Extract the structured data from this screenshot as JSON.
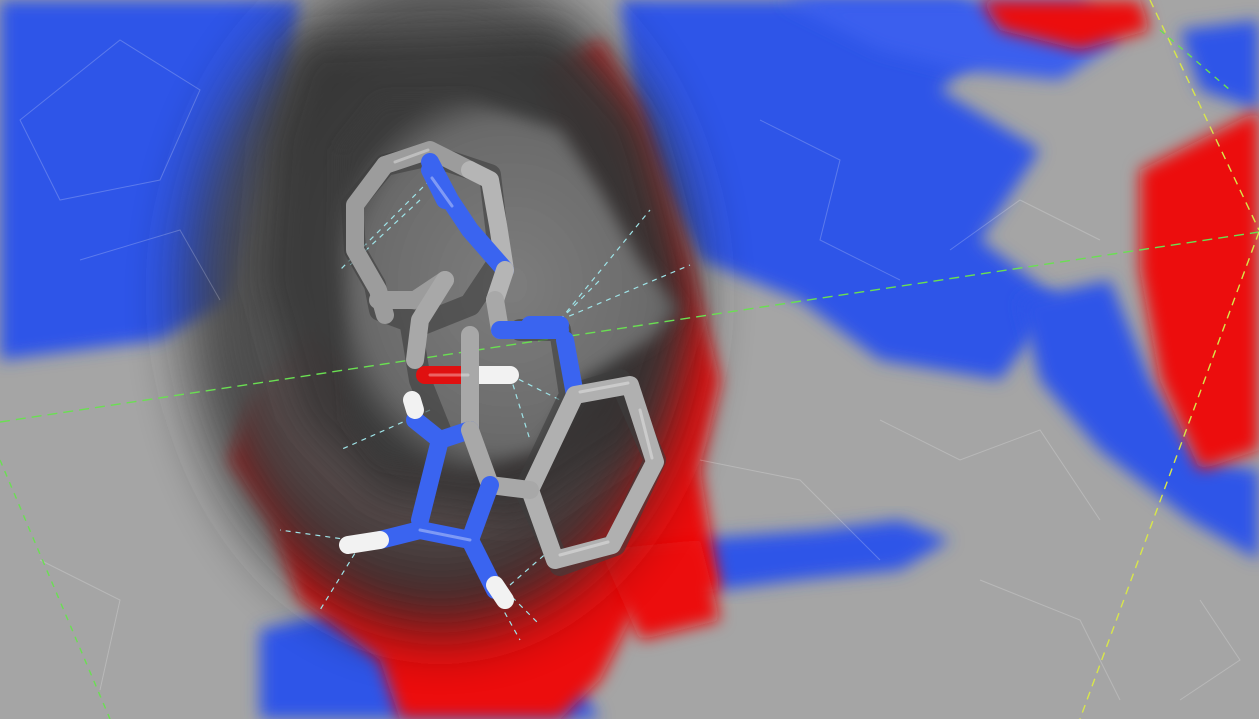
{
  "scene": {
    "type": "molecular-docking-render",
    "surface_colors": {
      "neutral": "#a9a9a9",
      "negative": "#ec0f0f",
      "positive": "#2f55e8",
      "pocket": "#7a7a7a"
    },
    "ligand_colors": {
      "carbon": "#a8a8a8",
      "nitrogen": "#3a64f0",
      "oxygen": "#e01010",
      "hydrogen": "#f2f2f2"
    },
    "guide_colors": {
      "interaction": "#9fe4e8",
      "axis": "#6adf52",
      "axis_alt": "#d8e64a"
    }
  }
}
